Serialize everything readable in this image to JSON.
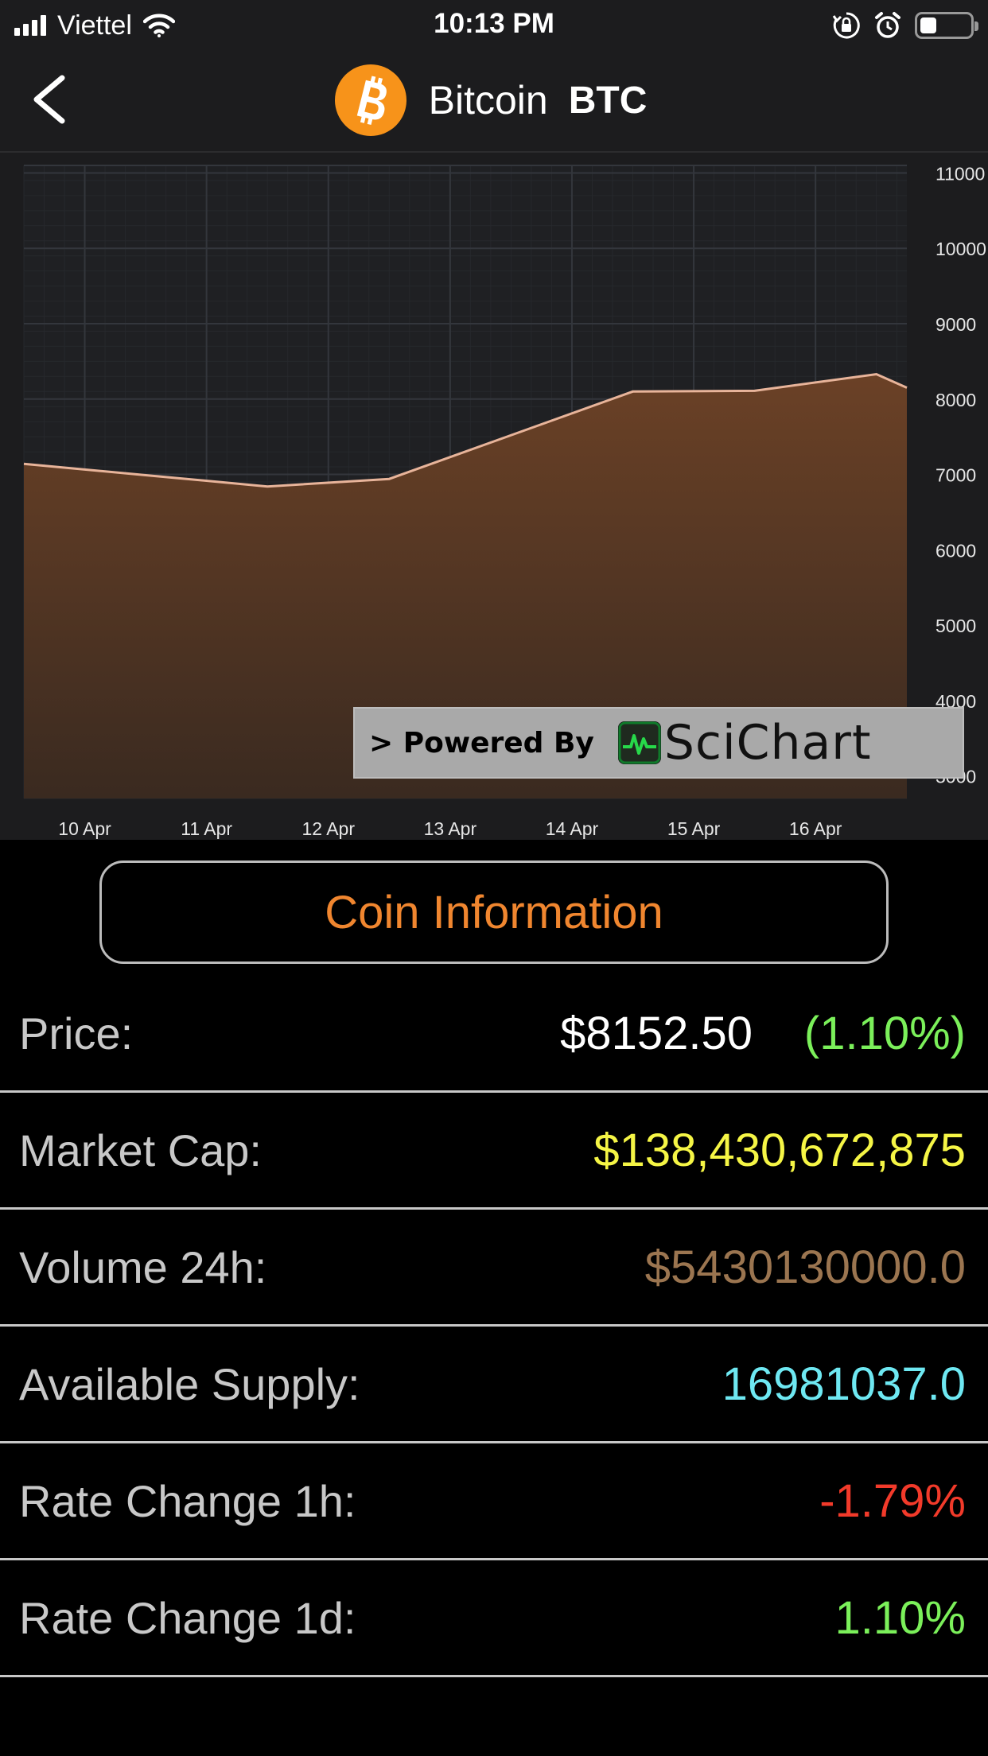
{
  "status_bar": {
    "carrier": "Viettel",
    "time": "10:13 PM",
    "battery_level": 0.3
  },
  "nav": {
    "coin_name": "Bitcoin",
    "coin_symbol": "BTC",
    "logo_color": "#f7931a"
  },
  "chart_data": {
    "type": "area",
    "x": [
      "9 Apr 12:00",
      "10 Apr 12:00",
      "11 Apr 12:00",
      "12 Apr 12:00",
      "13 Apr 12:00",
      "14 Apr 12:00",
      "15 Apr 12:00",
      "16 Apr 12:00",
      "16 Apr 18:00"
    ],
    "x_ticks": [
      "10 Apr",
      "11 Apr",
      "12 Apr",
      "13 Apr",
      "14 Apr",
      "15 Apr",
      "16 Apr"
    ],
    "series": [
      {
        "values": [
          7140,
          6990,
          6840,
          6940,
          7520,
          8100,
          8110,
          8330,
          8150
        ],
        "stroke_color": "#e8b49a",
        "fill_color": "#6b4126"
      }
    ],
    "y_ticks": [
      3000,
      4000,
      5000,
      6000,
      7000,
      8000,
      9000,
      10000,
      11000
    ],
    "ylim": [
      2700,
      11100
    ],
    "grid": true,
    "watermark": {
      "prefix": "> Powered By",
      "brand": "SciChart"
    }
  },
  "info_button": {
    "label": "Coin Information"
  },
  "info": {
    "price": {
      "label": "Price:",
      "value": "$8152.50",
      "change": "(1.10%)",
      "change_color": "#7bf05a"
    },
    "market_cap": {
      "label": "Market Cap:",
      "value": "$138,430,672,875",
      "color": "#f5f545"
    },
    "volume": {
      "label": "Volume 24h:",
      "value": "$5430130000.0",
      "color": "#9b7550"
    },
    "supply": {
      "label": "Available Supply:",
      "value": "16981037.0",
      "color": "#6ee8f2"
    },
    "rate_1h": {
      "label": "Rate Change 1h:",
      "value": "-1.79%",
      "color": "#f23a2a"
    },
    "rate_1d": {
      "label": "Rate Change 1d:",
      "value": "1.10%",
      "color": "#7bf05a"
    }
  }
}
